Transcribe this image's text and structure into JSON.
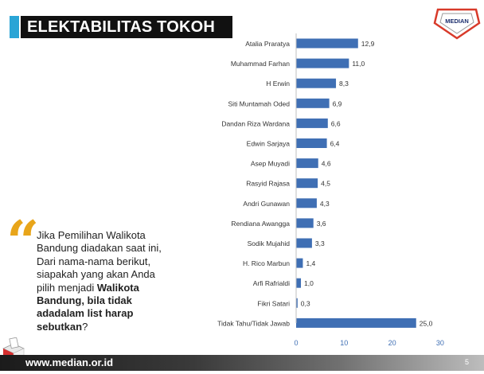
{
  "title": "ELEKTABILITAS TOKOH",
  "logo_text": "MEDIAN",
  "quote": {
    "line1": "Jika Pemilihan Walikota",
    "line2": "Bandung diadakan saat ini,",
    "line3": "Dari nama-nama berikut,",
    "line4_plain": "siapakah yang akan Anda",
    "line5_plain": "pilih menjadi ",
    "line5_bold": "Walikota",
    "line6_bold": "Bandung, bila tidak",
    "line7_bold": "adadalam list harap",
    "line8_bold": "sebutkan",
    "line8_plain": "?"
  },
  "footer": {
    "url": "www.median.or.id",
    "page": "5"
  },
  "colors": {
    "bar": "#3f6fb4",
    "title_bg": "#111111",
    "accent": "#2aa5d6",
    "quote_mark": "#e8a51a"
  },
  "chart_data": {
    "type": "bar",
    "orientation": "horizontal",
    "categories": [
      "Atalia Praratya",
      "Muhammad Farhan",
      "H Erwin",
      "Siti Muntamah Oded",
      "Dandan Riza Wardana",
      "Edwin Sarjaya",
      "Asep Muyadi",
      "Rasyid Rajasa",
      "Andri Gunawan",
      "Rendiana Awangga",
      "Sodik Mujahid",
      "H. Rico Marbun",
      "Arfi Rafrialdi",
      "Fikri Satari",
      "Tidak Tahu/Tidak Jawab"
    ],
    "values": [
      12.9,
      11.0,
      8.3,
      6.9,
      6.6,
      6.4,
      4.6,
      4.5,
      4.3,
      3.6,
      3.3,
      1.4,
      1.0,
      0.3,
      25.0
    ],
    "value_labels": [
      "12,9",
      "11,0",
      "8,3",
      "6,9",
      "6,6",
      "6,4",
      "4,6",
      "4,5",
      "4,3",
      "3,6",
      "3,3",
      "1,4",
      "1,0",
      "0,3",
      "25,0"
    ],
    "xlim": [
      0,
      30
    ],
    "xticks": [
      "0",
      "10",
      "20",
      "30"
    ],
    "grid": false,
    "legend": "none"
  }
}
